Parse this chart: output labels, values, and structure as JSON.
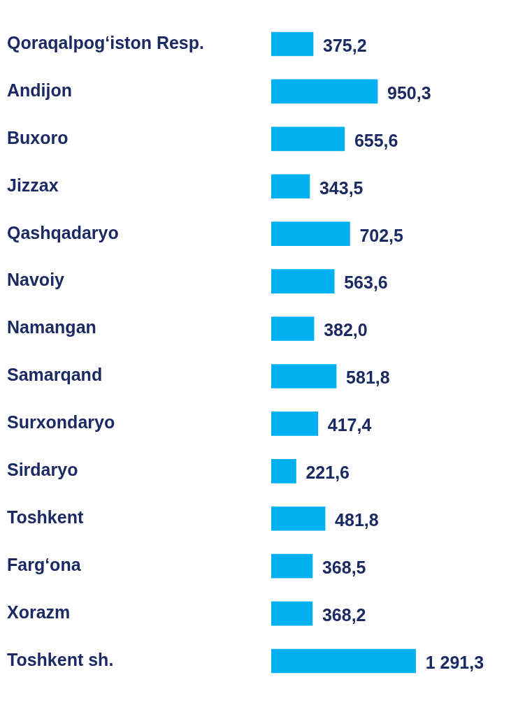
{
  "chart_data": {
    "type": "bar",
    "orientation": "horizontal",
    "categories": [
      "Qoraqalpog‘iston Resp.",
      "Andijon",
      "Buxoro",
      "Jizzax",
      "Qashqadaryo",
      "Navoiy",
      "Namangan",
      "Samarqand",
      "Surxondaryo",
      "Sirdaryo",
      "Toshkent",
      "Farg‘ona",
      "Xorazm",
      "Toshkent sh."
    ],
    "values": [
      375.2,
      950.3,
      655.6,
      343.5,
      702.5,
      563.6,
      382.0,
      581.8,
      417.4,
      221.6,
      481.8,
      368.5,
      368.2,
      1291.3
    ],
    "color": "#00b0f0",
    "value_labels": [
      "375,2",
      "950,3",
      "655,6",
      "343,5",
      "702,5",
      "563,6",
      "382,0",
      "581,8",
      "417,4",
      "221,6",
      "481,8",
      "368,5",
      "368,2",
      "1 291,3"
    ],
    "tick_labels": "y",
    "legend": false
  }
}
